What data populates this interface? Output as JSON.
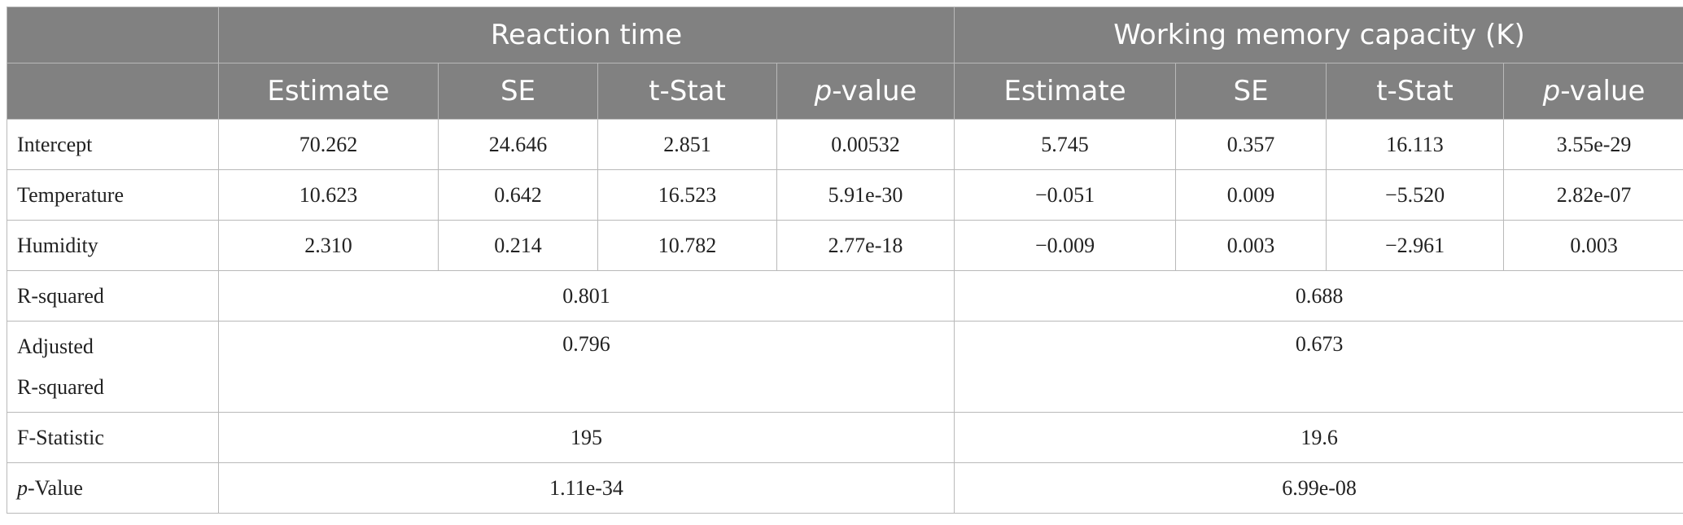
{
  "header": {
    "group_reaction": "Reaction time",
    "group_wm": "Working memory capacity (K)",
    "columns": [
      {
        "it": "",
        "rest": "Estimate"
      },
      {
        "it": "",
        "rest": "SE"
      },
      {
        "it": "",
        "rest": "t-Stat"
      },
      {
        "it": "p",
        "rest": "-value"
      },
      {
        "it": "",
        "rest": "Estimate"
      },
      {
        "it": "",
        "rest": "SE"
      },
      {
        "it": "",
        "rest": "t-Stat"
      },
      {
        "it": "p",
        "rest": "-value"
      }
    ]
  },
  "rows": [
    {
      "label": "Intercept",
      "values": [
        "70.262",
        "24.646",
        "2.851",
        "0.00532",
        "5.745",
        "0.357",
        "16.113",
        "3.55e-29"
      ]
    },
    {
      "label": "Temperature",
      "values": [
        "10.623",
        "0.642",
        "16.523",
        "5.91e-30",
        "−0.051",
        "0.009",
        "−5.520",
        "2.82e-07"
      ]
    },
    {
      "label": "Humidity",
      "values": [
        "2.310",
        "0.214",
        "10.782",
        "2.77e-18",
        "−0.009",
        "0.003",
        "−2.961",
        "0.003"
      ]
    }
  ],
  "summary": [
    {
      "label_line1": "R-squared",
      "label_line2": "",
      "reaction": "0.801",
      "wm": "0.688"
    },
    {
      "label_line1": "Adjusted",
      "label_line2": "R-squared",
      "reaction": "0.796",
      "wm": "0.673"
    },
    {
      "label_line1": "F-Statistic",
      "label_line2": "",
      "reaction": "195",
      "wm": "19.6"
    },
    {
      "label_it": "p",
      "label_rest": "-Value",
      "reaction": "1.11e-34",
      "wm": "6.99e-08"
    }
  ]
}
